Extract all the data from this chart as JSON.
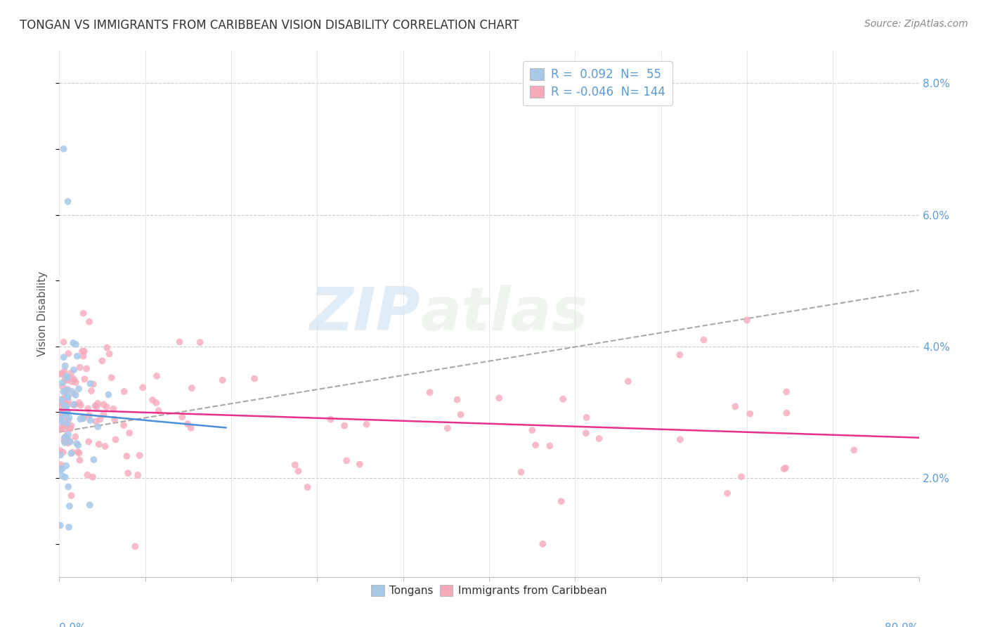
{
  "title": "TONGAN VS IMMIGRANTS FROM CARIBBEAN VISION DISABILITY CORRELATION CHART",
  "source_text": "Source: ZipAtlas.com",
  "ylabel": "Vision Disability",
  "xmin": 0.0,
  "xmax": 0.8,
  "ymin": 0.005,
  "ymax": 0.085,
  "R_tongan": 0.092,
  "N_tongan": 55,
  "R_caribbean": -0.046,
  "N_caribbean": 144,
  "color_tongan": "#a8c8e8",
  "color_caribbean": "#f5aabc",
  "color_tongan_line": "#4a90d9",
  "color_caribbean_line": "#e8308a",
  "color_dashed": "#999999",
  "watermark_text": "ZIP",
  "watermark_text2": "atlas",
  "right_yticks": [
    0.02,
    0.04,
    0.06,
    0.08
  ],
  "right_yticklabels": [
    "2.0%",
    "4.0%",
    "6.0%",
    "8.0%"
  ]
}
